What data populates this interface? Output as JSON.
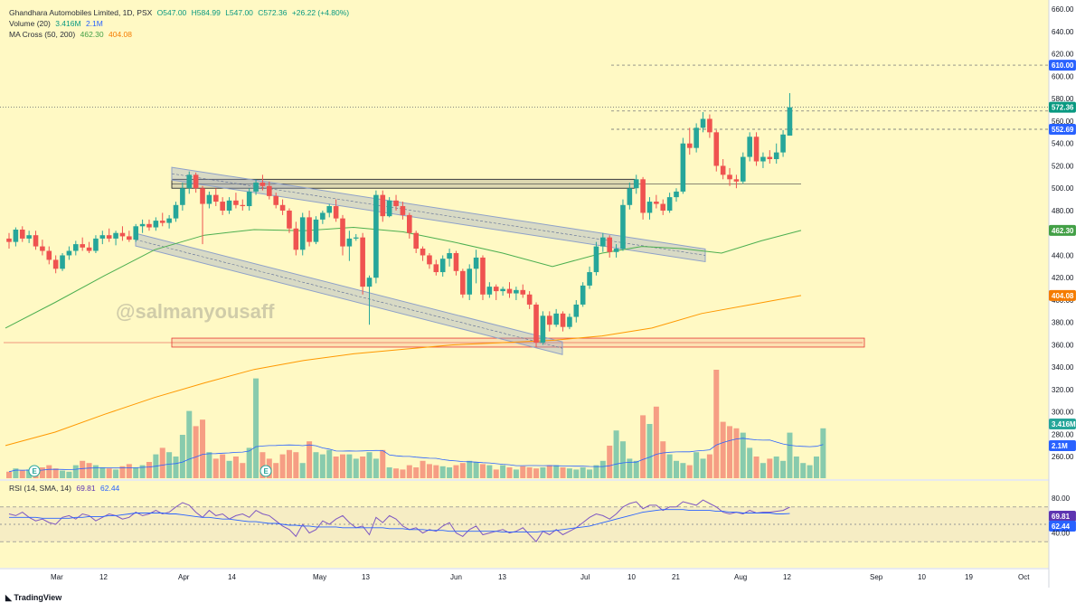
{
  "legend": {
    "symbol": "Ghandhara Automobiles Limited, 1D, PSX",
    "open": "O547.00",
    "high": "H584.99",
    "low": "L547.00",
    "close": "C572.36",
    "change": "+26.22 (+4.80%)",
    "volume_label": "Volume (20)",
    "volume_val": "3.416M",
    "volume_ma": "2.1M",
    "ma_label": "MA Cross (50, 200)",
    "ma50": "462.30",
    "ma200": "404.08",
    "rsi_label": "RSI (14, SMA, 14)",
    "rsi_val": "69.81",
    "rsi_sma": "62.44"
  },
  "watermark": "@salmanyousaff",
  "brand": "TradingView",
  "colors": {
    "bg": "#fff9c4",
    "up": "#26a69a",
    "down": "#ef5350",
    "ma50": "#4caf50",
    "ma200": "#ff9800",
    "rsi": "#7e57c2",
    "rsi_sma": "#2962ff",
    "channel": "#8fa1c8",
    "level_blue": "#2962ff"
  },
  "price_badges": [
    {
      "value": "610.00",
      "color": "#2962ff"
    },
    {
      "value": "572.36",
      "color": "#089981"
    },
    {
      "value": "552.69",
      "color": "#2962ff"
    },
    {
      "value": "462.30",
      "color": "#43a047"
    },
    {
      "value": "404.08",
      "color": "#f57c00"
    },
    {
      "value": "3.416M",
      "color": "#26a69a"
    },
    {
      "value": "2.1M",
      "color": "#2962ff"
    },
    {
      "value": "69.81",
      "color": "#5e35b1"
    },
    {
      "value": "62.44",
      "color": "#2962ff"
    }
  ],
  "chart_data": [
    {
      "type": "candlestick",
      "xlabels": [
        "Mar",
        "12",
        "Apr",
        "14",
        "May",
        "13",
        "Jun",
        "13",
        "Jul",
        "10",
        "21",
        "Aug",
        "12",
        "Sep",
        "10",
        "19",
        "Oct"
      ],
      "ylim": [
        240,
        665
      ],
      "yticks": [
        "660.00",
        "640.00",
        "620.00",
        "600.00",
        "580.00",
        "560.00",
        "540.00",
        "520.00",
        "500.00",
        "480.00",
        "460.00",
        "440.00",
        "420.00",
        "400.00",
        "380.00",
        "360.00",
        "340.00",
        "320.00",
        "300.00",
        "280.00",
        "260.00"
      ],
      "levels": [
        {
          "name": "610.00",
          "value": 610,
          "style": "dashed"
        },
        {
          "name": "572.36",
          "value": 572.36,
          "style": "dotted"
        },
        {
          "name": "569",
          "value": 569,
          "style": "dashed"
        },
        {
          "name": "552.69",
          "value": 552.69,
          "style": "dashed"
        }
      ],
      "zones": [
        {
          "low": 500,
          "high": 508
        },
        {
          "low": 358,
          "high": 366
        }
      ],
      "channels": [
        {
          "from": [
            0.12,
            513
          ],
          "to": [
            0.648,
            440
          ],
          "width": 7
        },
        {
          "from": [
            0.12,
            454
          ],
          "to": [
            0.518,
            357
          ],
          "width": 7
        }
      ],
      "candles": [
        [
          455,
          460,
          446,
          452
        ],
        [
          452,
          465,
          448,
          463
        ],
        [
          463,
          466,
          452,
          455
        ],
        [
          455,
          462,
          451,
          458
        ],
        [
          458,
          462,
          445,
          448
        ],
        [
          448,
          454,
          440,
          444
        ],
        [
          444,
          448,
          432,
          436
        ],
        [
          436,
          440,
          424,
          428
        ],
        [
          428,
          442,
          426,
          440
        ],
        [
          440,
          448,
          436,
          444
        ],
        [
          444,
          453,
          440,
          450
        ],
        [
          450,
          456,
          444,
          447
        ],
        [
          447,
          452,
          442,
          444
        ],
        [
          444,
          458,
          442,
          455
        ],
        [
          455,
          462,
          450,
          458
        ],
        [
          458,
          464,
          452,
          455
        ],
        [
          455,
          462,
          449,
          460
        ],
        [
          460,
          466,
          453,
          457
        ],
        [
          457,
          462,
          452,
          454
        ],
        [
          454,
          468,
          452,
          466
        ],
        [
          466,
          472,
          460,
          468
        ],
        [
          468,
          472,
          462,
          465
        ],
        [
          465,
          474,
          462,
          471
        ],
        [
          471,
          478,
          466,
          469
        ],
        [
          469,
          476,
          464,
          473
        ],
        [
          473,
          488,
          470,
          485
        ],
        [
          485,
          505,
          480,
          500
        ],
        [
          500,
          515,
          495,
          512
        ],
        [
          512,
          514,
          496,
          500
        ],
        [
          500,
          502,
          450,
          486
        ],
        [
          486,
          497,
          482,
          494
        ],
        [
          494,
          500,
          484,
          488
        ],
        [
          488,
          492,
          476,
          480
        ],
        [
          480,
          492,
          477,
          489
        ],
        [
          489,
          496,
          482,
          485
        ],
        [
          485,
          490,
          480,
          484
        ],
        [
          484,
          500,
          480,
          497
        ],
        [
          497,
          508,
          494,
          505
        ],
        [
          505,
          512,
          498,
          502
        ],
        [
          502,
          506,
          490,
          493
        ],
        [
          493,
          496,
          482,
          485
        ],
        [
          485,
          490,
          476,
          480
        ],
        [
          480,
          482,
          460,
          464
        ],
        [
          464,
          470,
          440,
          445
        ],
        [
          445,
          478,
          440,
          474
        ],
        [
          474,
          480,
          448,
          452
        ],
        [
          452,
          475,
          450,
          472
        ],
        [
          472,
          480,
          468,
          478
        ],
        [
          478,
          486,
          474,
          484
        ],
        [
          484,
          490,
          470,
          473
        ],
        [
          473,
          476,
          440,
          448
        ],
        [
          448,
          462,
          435,
          455
        ],
        [
          455,
          459,
          453,
          456
        ],
        [
          456,
          460,
          405,
          412
        ],
        [
          412,
          422,
          378,
          420
        ],
        [
          420,
          498,
          415,
          494
        ],
        [
          494,
          498,
          470,
          475
        ],
        [
          475,
          492,
          474,
          489
        ],
        [
          489,
          494,
          480,
          484
        ],
        [
          484,
          488,
          472,
          476
        ],
        [
          476,
          478,
          455,
          460
        ],
        [
          460,
          462,
          442,
          446
        ],
        [
          446,
          448,
          435,
          440
        ],
        [
          440,
          442,
          428,
          432
        ],
        [
          432,
          436,
          422,
          425
        ],
        [
          425,
          440,
          421,
          437
        ],
        [
          437,
          446,
          430,
          442
        ],
        [
          442,
          444,
          422,
          426
        ],
        [
          426,
          428,
          402,
          405
        ],
        [
          405,
          432,
          400,
          428
        ],
        [
          428,
          445,
          415,
          438
        ],
        [
          438,
          440,
          400,
          405
        ],
        [
          405,
          416,
          402,
          412
        ],
        [
          412,
          414,
          400,
          408
        ],
        [
          408,
          412,
          404,
          410
        ],
        [
          410,
          416,
          402,
          406
        ],
        [
          406,
          412,
          400,
          409
        ],
        [
          409,
          414,
          402,
          405
        ],
        [
          405,
          408,
          392,
          396
        ],
        [
          396,
          398,
          358,
          362
        ],
        [
          362,
          390,
          360,
          386
        ],
        [
          386,
          390,
          372,
          378
        ],
        [
          378,
          392,
          376,
          388
        ],
        [
          388,
          390,
          372,
          376
        ],
        [
          376,
          388,
          374,
          385
        ],
        [
          385,
          400,
          380,
          396
        ],
        [
          396,
          416,
          394,
          413
        ],
        [
          413,
          430,
          410,
          425
        ],
        [
          425,
          452,
          422,
          448
        ],
        [
          448,
          460,
          443,
          456
        ],
        [
          456,
          458,
          438,
          443
        ],
        [
          443,
          450,
          438,
          446
        ],
        [
          446,
          490,
          444,
          485
        ],
        [
          485,
          505,
          481,
          500
        ],
        [
          500,
          512,
          495,
          508
        ],
        [
          508,
          510,
          472,
          478
        ],
        [
          478,
          492,
          472,
          488
        ],
        [
          488,
          494,
          482,
          486
        ],
        [
          486,
          490,
          476,
          480
        ],
        [
          480,
          496,
          478,
          492
        ],
        [
          492,
          500,
          488,
          497
        ],
        [
          497,
          545,
          495,
          540
        ],
        [
          540,
          554,
          530,
          536
        ],
        [
          536,
          558,
          532,
          554
        ],
        [
          554,
          568,
          550,
          562
        ],
        [
          562,
          566,
          545,
          550
        ],
        [
          550,
          552,
          515,
          520
        ],
        [
          520,
          526,
          508,
          512
        ],
        [
          512,
          518,
          502,
          508
        ],
        [
          508,
          512,
          500,
          506
        ],
        [
          506,
          532,
          504,
          528
        ],
        [
          528,
          550,
          524,
          546
        ],
        [
          546,
          550,
          520,
          524
        ],
        [
          524,
          532,
          518,
          528
        ],
        [
          528,
          534,
          522,
          526
        ],
        [
          526,
          540,
          522,
          532
        ],
        [
          532,
          552,
          528,
          548
        ],
        [
          547,
          584.99,
          547,
          572.36
        ]
      ],
      "ma50": [
        [
          0,
          375
        ],
        [
          0.05,
          398
        ],
        [
          0.1,
          422
        ],
        [
          0.15,
          445
        ],
        [
          0.2,
          458
        ],
        [
          0.25,
          463
        ],
        [
          0.3,
          462
        ],
        [
          0.35,
          465
        ],
        [
          0.4,
          461
        ],
        [
          0.45,
          452
        ],
        [
          0.5,
          442
        ],
        [
          0.55,
          430
        ],
        [
          0.6,
          442
        ],
        [
          0.64,
          448
        ],
        [
          0.68,
          446
        ],
        [
          0.72,
          442
        ],
        [
          0.76,
          453
        ],
        [
          0.8,
          462.3
        ]
      ],
      "ma200": [
        [
          0,
          270
        ],
        [
          0.05,
          282
        ],
        [
          0.1,
          298
        ],
        [
          0.15,
          313
        ],
        [
          0.2,
          326
        ],
        [
          0.25,
          338
        ],
        [
          0.3,
          346
        ],
        [
          0.35,
          352
        ],
        [
          0.4,
          356
        ],
        [
          0.45,
          360
        ],
        [
          0.5,
          362
        ],
        [
          0.55,
          364
        ],
        [
          0.6,
          368
        ],
        [
          0.65,
          375
        ],
        [
          0.7,
          388
        ],
        [
          0.75,
          396
        ],
        [
          0.8,
          404.08
        ]
      ],
      "volume": [
        0.06,
        0.09,
        0.07,
        0.08,
        0.05,
        0.1,
        0.12,
        0.09,
        0.07,
        0.06,
        0.12,
        0.16,
        0.14,
        0.12,
        0.1,
        0.09,
        0.08,
        0.11,
        0.13,
        0.1,
        0.12,
        0.15,
        0.22,
        0.28,
        0.24,
        0.2,
        0.4,
        0.62,
        0.48,
        0.54,
        0.24,
        0.18,
        0.22,
        0.16,
        0.2,
        0.14,
        0.28,
        0.92,
        0.24,
        0.18,
        0.14,
        0.22,
        0.26,
        0.24,
        0.14,
        0.34,
        0.24,
        0.22,
        0.26,
        0.2,
        0.22,
        0.22,
        0.18,
        0.2,
        0.24,
        0.18,
        0.26,
        0.1,
        0.09,
        0.08,
        0.12,
        0.1,
        0.16,
        0.13,
        0.12,
        0.11,
        0.1,
        0.12,
        0.14,
        0.16,
        0.15,
        0.13,
        0.12,
        0.08,
        0.12,
        0.1,
        0.08,
        0.11,
        0.1,
        0.09,
        0.1,
        0.12,
        0.12,
        0.1,
        0.09,
        0.08,
        0.1,
        0.08,
        0.12,
        0.16,
        0.3,
        0.44,
        0.34,
        0.18,
        0.16,
        0.58,
        0.5,
        0.66,
        0.34,
        0.22,
        0.16,
        0.14,
        0.12,
        0.24,
        0.18,
        0.22,
        1.0,
        0.52,
        0.48,
        0.46,
        0.42,
        0.28,
        0.2,
        0.14,
        0.18,
        0.2,
        0.16,
        0.42,
        0.2,
        0.14,
        0.12,
        0.2,
        0.46
      ],
      "rsi": [
        62,
        60,
        64,
        58,
        54,
        56,
        52,
        50,
        58,
        60,
        56,
        62,
        60,
        54,
        58,
        62,
        60,
        56,
        58,
        64,
        60,
        62,
        66,
        62,
        64,
        70,
        75,
        72,
        64,
        58,
        66,
        60,
        62,
        56,
        60,
        62,
        58,
        66,
        62,
        60,
        54,
        48,
        44,
        36,
        50,
        40,
        44,
        54,
        50,
        56,
        60,
        52,
        46,
        48,
        38,
        58,
        52,
        60,
        56,
        48,
        44,
        46,
        40,
        44,
        42,
        48,
        52,
        40,
        36,
        44,
        48,
        38,
        40,
        42,
        44,
        40,
        42,
        46,
        38,
        30,
        42,
        38,
        44,
        38,
        42,
        46,
        52,
        58,
        62,
        60,
        56,
        62,
        70,
        74,
        76,
        68,
        72,
        72,
        66,
        70,
        70,
        76,
        74,
        72,
        78,
        74,
        70,
        64,
        62,
        64,
        62,
        66,
        63,
        64,
        64,
        65,
        66,
        69.81
      ],
      "rsi_sma": [
        58,
        58,
        58,
        58,
        58,
        57,
        57,
        57,
        57,
        57,
        58,
        58,
        59,
        59,
        59,
        60,
        60,
        61,
        62,
        63,
        63,
        63,
        63,
        63,
        62,
        62,
        61,
        60,
        59,
        58,
        58,
        57,
        56,
        56,
        55,
        54,
        53,
        53,
        52,
        51,
        51,
        50,
        49,
        49,
        48,
        48,
        47,
        47,
        47,
        47,
        46,
        46,
        46,
        46,
        46,
        46,
        46,
        45,
        45,
        45,
        44,
        44,
        44,
        43,
        43,
        43,
        42,
        42,
        42,
        42,
        42,
        42,
        42,
        42,
        41,
        41,
        41,
        41,
        41,
        41,
        42,
        42,
        43,
        44,
        45,
        46,
        47,
        48,
        50,
        52,
        54,
        56,
        58,
        60,
        62,
        64,
        65,
        66,
        67,
        67,
        67,
        67,
        66,
        66,
        66,
        66,
        65,
        65,
        64,
        64,
        63,
        63,
        63,
        63,
        63,
        62,
        62,
        62.44
      ],
      "rsi_ylim": [
        0,
        100
      ],
      "rsi_yticks": [
        "80.00",
        "40.00"
      ],
      "rsi_bands": [
        70,
        50,
        30
      ]
    }
  ]
}
